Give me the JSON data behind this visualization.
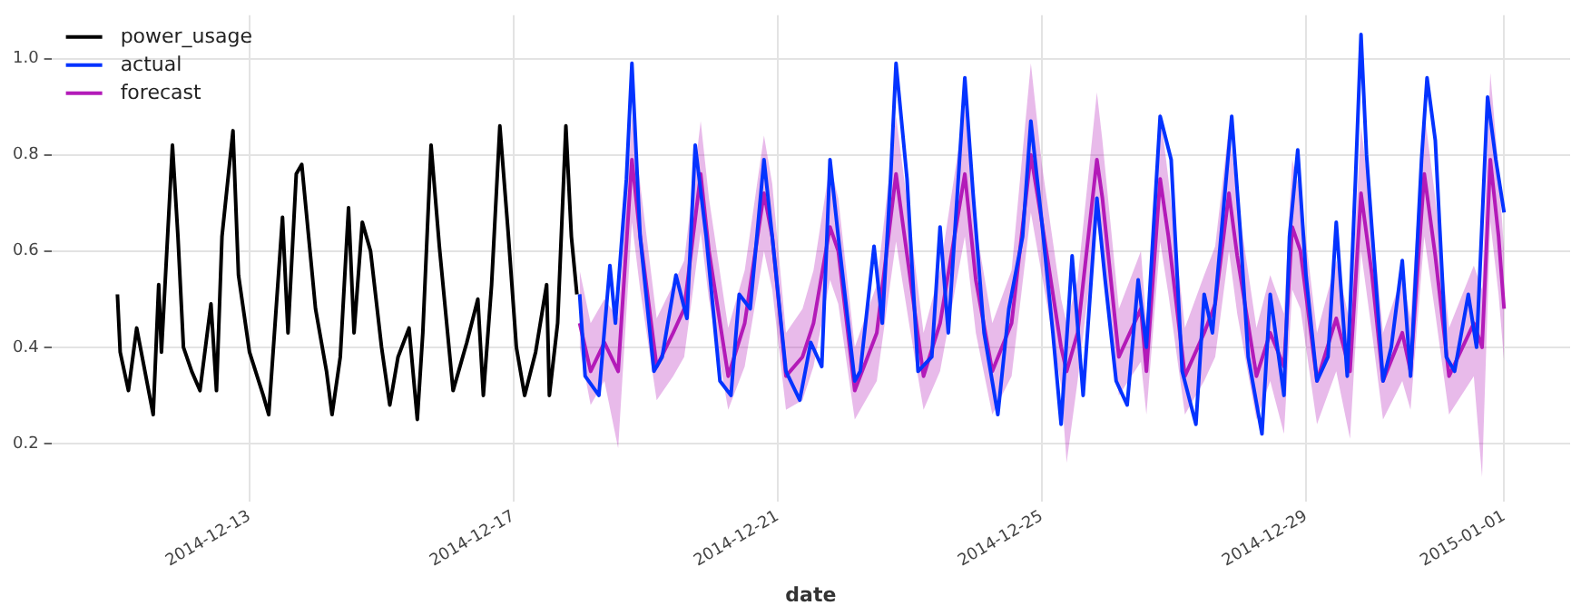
{
  "chart_data": {
    "type": "line",
    "xlabel": "date",
    "xlim": [
      "2014-12-10",
      "2015-01-02"
    ],
    "xticks": [
      "2014-12-13",
      "2014-12-17",
      "2014-12-21",
      "2014-12-25",
      "2014-12-29",
      "2015-01-01"
    ],
    "ylim": [
      0.08,
      1.09
    ],
    "yticks": [
      0.2,
      0.4,
      0.6,
      0.8,
      {
        "value": 1.0,
        "label": "1.0"
      }
    ],
    "grid": true,
    "legend": "top left",
    "series": [
      {
        "name": "power_usage",
        "color": "#000000",
        "x": [
          "2014-12-11T00:00",
          "2014-12-11T01:00",
          "2014-12-11T04:00",
          "2014-12-11T07:00",
          "2014-12-11T13:00",
          "2014-12-11T15:00",
          "2014-12-11T16:00",
          "2014-12-11T20:00",
          "2014-12-11T22:00",
          "2014-12-12T00:00",
          "2014-12-12T03:00",
          "2014-12-12T06:00",
          "2014-12-12T10:00",
          "2014-12-12T12:00",
          "2014-12-12T14:00",
          "2014-12-12T18:00",
          "2014-12-12T20:00",
          "2014-12-13T00:00",
          "2014-12-13T05:00",
          "2014-12-13T07:00",
          "2014-12-13T12:00",
          "2014-12-13T14:00",
          "2014-12-13T17:00",
          "2014-12-13T19:00",
          "2014-12-13T21:00",
          "2014-12-14T00:00",
          "2014-12-14T04:00",
          "2014-12-14T06:00",
          "2014-12-14T09:00",
          "2014-12-14T12:00",
          "2014-12-14T14:00",
          "2014-12-14T17:00",
          "2014-12-14T20:00",
          "2014-12-15T00:00",
          "2014-12-15T03:00",
          "2014-12-15T06:00",
          "2014-12-15T10:00",
          "2014-12-15T13:00",
          "2014-12-15T15:00",
          "2014-12-15T18:00",
          "2014-12-15T21:00",
          "2014-12-16T00:00",
          "2014-12-16T02:00",
          "2014-12-16T07:00",
          "2014-12-16T11:00",
          "2014-12-16T13:00",
          "2014-12-16T16:00",
          "2014-12-16T19:00",
          "2014-12-16T22:00",
          "2014-12-17T01:00",
          "2014-12-17T04:00",
          "2014-12-17T08:00",
          "2014-12-17T12:00",
          "2014-12-17T13:00",
          "2014-12-17T16:00",
          "2014-12-17T19:00",
          "2014-12-17T21:00",
          "2014-12-17T23:00"
        ],
        "values": [
          0.51,
          0.39,
          0.31,
          0.44,
          0.26,
          0.53,
          0.39,
          0.82,
          0.63,
          0.4,
          0.35,
          0.31,
          0.49,
          0.31,
          0.63,
          0.85,
          0.55,
          0.39,
          0.3,
          0.26,
          0.67,
          0.43,
          0.76,
          0.78,
          0.66,
          0.48,
          0.35,
          0.26,
          0.38,
          0.69,
          0.43,
          0.66,
          0.6,
          0.4,
          0.28,
          0.38,
          0.44,
          0.25,
          0.43,
          0.82,
          0.61,
          0.43,
          0.31,
          0.41,
          0.5,
          0.3,
          0.53,
          0.86,
          0.64,
          0.4,
          0.3,
          0.39,
          0.53,
          0.3,
          0.45,
          0.86,
          0.63,
          0.51
        ]
      },
      {
        "name": "actual",
        "color": "#0433ff",
        "x": [
          "2014-12-18T00:00",
          "2014-12-18T02:00",
          "2014-12-18T07:00",
          "2014-12-18T11:00",
          "2014-12-18T13:00",
          "2014-12-18T17:00",
          "2014-12-18T19:00",
          "2014-12-18T22:00",
          "2014-12-19T03:00",
          "2014-12-19T06:00",
          "2014-12-19T11:00",
          "2014-12-19T15:00",
          "2014-12-19T18:00",
          "2014-12-19T22:00",
          "2014-12-20T03:00",
          "2014-12-20T07:00",
          "2014-12-20T10:00",
          "2014-12-20T14:00",
          "2014-12-20T19:00",
          "2014-12-20T22:00",
          "2014-12-21T03:00",
          "2014-12-21T08:00",
          "2014-12-21T12:00",
          "2014-12-21T16:00",
          "2014-12-21T19:00",
          "2014-12-21T22:00",
          "2014-12-22T04:00",
          "2014-12-22T06:00",
          "2014-12-22T11:00",
          "2014-12-22T14:00",
          "2014-12-22T17:00",
          "2014-12-22T19:00",
          "2014-12-22T23:00",
          "2014-12-23T03:00",
          "2014-12-23T08:00",
          "2014-12-23T11:00",
          "2014-12-23T14:00",
          "2014-12-23T20:00",
          "2014-12-23T23:00",
          "2014-12-24T03:00",
          "2014-12-24T08:00",
          "2014-12-24T12:00",
          "2014-12-24T17:00",
          "2014-12-24T20:00",
          "2014-12-25T00:00",
          "2014-12-25T04:00",
          "2014-12-25T07:00",
          "2014-12-25T11:00",
          "2014-12-25T15:00",
          "2014-12-25T20:00",
          "2014-12-25T23:00",
          "2014-12-26T03:00",
          "2014-12-26T07:00",
          "2014-12-26T11:00",
          "2014-12-26T14:00",
          "2014-12-26T19:00",
          "2014-12-26T23:00",
          "2014-12-27T03:00",
          "2014-12-27T08:00",
          "2014-12-27T11:00",
          "2014-12-27T14:00",
          "2014-12-27T21:00",
          "2014-12-28T00:00",
          "2014-12-28T03:00",
          "2014-12-28T08:00",
          "2014-12-28T11:00",
          "2014-12-28T16:00",
          "2014-12-28T18:00",
          "2014-12-28T21:00",
          "2014-12-29T00:00",
          "2014-12-29T04:00",
          "2014-12-29T08:00",
          "2014-12-29T11:00",
          "2014-12-29T15:00",
          "2014-12-29T18:00",
          "2014-12-29T20:00",
          "2014-12-29T22:00",
          "2014-12-30T04:00",
          "2014-12-30T07:00",
          "2014-12-30T11:00",
          "2014-12-30T14:00",
          "2014-12-30T18:00",
          "2014-12-30T20:00",
          "2014-12-30T23:00",
          "2014-12-31T03:00",
          "2014-12-31T06:00",
          "2014-12-31T11:00",
          "2014-12-31T14:00",
          "2014-12-31T18:00",
          "2014-12-31T21:00",
          "2015-01-01T00:00"
        ],
        "values": [
          0.51,
          0.34,
          0.3,
          0.57,
          0.45,
          0.75,
          0.99,
          0.63,
          0.35,
          0.38,
          0.55,
          0.46,
          0.82,
          0.63,
          0.33,
          0.3,
          0.51,
          0.48,
          0.79,
          0.63,
          0.35,
          0.29,
          0.41,
          0.36,
          0.79,
          0.63,
          0.33,
          0.35,
          0.61,
          0.45,
          0.75,
          0.99,
          0.75,
          0.35,
          0.38,
          0.65,
          0.43,
          0.96,
          0.72,
          0.43,
          0.26,
          0.48,
          0.63,
          0.87,
          0.66,
          0.43,
          0.24,
          0.59,
          0.3,
          0.71,
          0.54,
          0.33,
          0.28,
          0.54,
          0.4,
          0.88,
          0.79,
          0.35,
          0.24,
          0.51,
          0.43,
          0.88,
          0.65,
          0.38,
          0.22,
          0.51,
          0.3,
          0.63,
          0.81,
          0.55,
          0.33,
          0.38,
          0.66,
          0.34,
          0.75,
          1.05,
          0.8,
          0.33,
          0.4,
          0.58,
          0.34,
          0.79,
          0.96,
          0.83,
          0.38,
          0.35,
          0.51,
          0.4,
          0.92,
          0.79,
          0.68
        ]
      },
      {
        "name": "forecast",
        "color": "#b31bb8",
        "x": [
          "2014-12-18T00:00",
          "2014-12-18T04:00",
          "2014-12-18T09:00",
          "2014-12-18T14:00",
          "2014-12-18T19:00",
          "2014-12-18T22:00",
          "2014-12-19T04:00",
          "2014-12-19T10:00",
          "2014-12-19T14:00",
          "2014-12-19T20:00",
          "2014-12-19T23:00",
          "2014-12-20T06:00",
          "2014-12-20T12:00",
          "2014-12-20T19:00",
          "2014-12-20T22:00",
          "2014-12-21T03:00",
          "2014-12-21T09:00",
          "2014-12-21T13:00",
          "2014-12-21T19:00",
          "2014-12-21T22:00",
          "2014-12-22T04:00",
          "2014-12-22T12:00",
          "2014-12-22T19:00",
          "2014-12-23T00:00",
          "2014-12-23T05:00",
          "2014-12-23T11:00",
          "2014-12-23T20:00",
          "2014-12-24T00:00",
          "2014-12-24T06:00",
          "2014-12-24T13:00",
          "2014-12-24T20:00",
          "2014-12-25T00:00",
          "2014-12-25T07:00",
          "2014-12-25T09:00",
          "2014-12-25T13:00",
          "2014-12-25T20:00",
          "2014-12-25T22:00",
          "2014-12-26T04:00",
          "2014-12-26T12:00",
          "2014-12-26T14:00",
          "2014-12-26T19:00",
          "2014-12-26T22:00",
          "2014-12-27T04:00",
          "2014-12-27T11:00",
          "2014-12-27T15:00",
          "2014-12-27T20:00",
          "2014-12-27T23:00",
          "2014-12-28T06:00",
          "2014-12-28T11:00",
          "2014-12-28T16:00",
          "2014-12-28T19:00",
          "2014-12-28T22:00",
          "2014-12-29T04:00",
          "2014-12-29T11:00",
          "2014-12-29T16:00",
          "2014-12-29T20:00",
          "2014-12-30T00:00",
          "2014-12-30T04:00",
          "2014-12-30T11:00",
          "2014-12-30T14:00",
          "2014-12-30T19:00",
          "2014-12-30T23:00",
          "2014-12-31T04:00",
          "2014-12-31T13:00",
          "2014-12-31T16:00",
          "2014-12-31T19:00",
          "2014-12-31T22:00",
          "2015-01-01T00:00"
        ],
        "values": [
          0.45,
          0.35,
          0.41,
          0.35,
          0.79,
          0.63,
          0.36,
          0.43,
          0.48,
          0.76,
          0.6,
          0.34,
          0.45,
          0.72,
          0.63,
          0.34,
          0.38,
          0.45,
          0.65,
          0.6,
          0.31,
          0.43,
          0.76,
          0.55,
          0.34,
          0.45,
          0.76,
          0.54,
          0.35,
          0.45,
          0.8,
          0.66,
          0.4,
          0.35,
          0.43,
          0.79,
          0.71,
          0.38,
          0.48,
          0.35,
          0.75,
          0.63,
          0.34,
          0.43,
          0.49,
          0.72,
          0.59,
          0.34,
          0.43,
          0.36,
          0.65,
          0.6,
          0.33,
          0.46,
          0.35,
          0.72,
          0.55,
          0.33,
          0.43,
          0.35,
          0.76,
          0.59,
          0.34,
          0.45,
          0.4,
          0.79,
          0.63,
          0.48
        ],
        "lower": [
          0.4,
          0.28,
          0.33,
          0.19,
          0.66,
          0.52,
          0.29,
          0.34,
          0.38,
          0.64,
          0.5,
          0.27,
          0.36,
          0.6,
          0.52,
          0.27,
          0.29,
          0.36,
          0.54,
          0.49,
          0.25,
          0.33,
          0.62,
          0.44,
          0.27,
          0.35,
          0.63,
          0.43,
          0.26,
          0.34,
          0.68,
          0.55,
          0.32,
          0.16,
          0.33,
          0.66,
          0.59,
          0.3,
          0.37,
          0.26,
          0.62,
          0.51,
          0.26,
          0.33,
          0.38,
          0.6,
          0.47,
          0.25,
          0.33,
          0.22,
          0.52,
          0.48,
          0.24,
          0.35,
          0.21,
          0.6,
          0.43,
          0.25,
          0.33,
          0.27,
          0.63,
          0.47,
          0.26,
          0.34,
          0.13,
          0.66,
          0.51,
          0.37
        ],
        "upper": [
          0.56,
          0.45,
          0.5,
          0.46,
          0.88,
          0.74,
          0.46,
          0.53,
          0.58,
          0.87,
          0.71,
          0.44,
          0.56,
          0.84,
          0.74,
          0.43,
          0.48,
          0.56,
          0.78,
          0.71,
          0.4,
          0.53,
          0.88,
          0.66,
          0.43,
          0.56,
          0.9,
          0.65,
          0.45,
          0.56,
          0.99,
          0.78,
          0.5,
          0.45,
          0.54,
          0.93,
          0.83,
          0.48,
          0.6,
          0.45,
          0.89,
          0.75,
          0.44,
          0.55,
          0.61,
          0.86,
          0.71,
          0.44,
          0.55,
          0.47,
          0.79,
          0.72,
          0.43,
          0.58,
          0.45,
          0.86,
          0.67,
          0.43,
          0.55,
          0.46,
          0.89,
          0.71,
          0.44,
          0.57,
          0.52,
          0.97,
          0.77,
          0.6
        ]
      }
    ]
  }
}
